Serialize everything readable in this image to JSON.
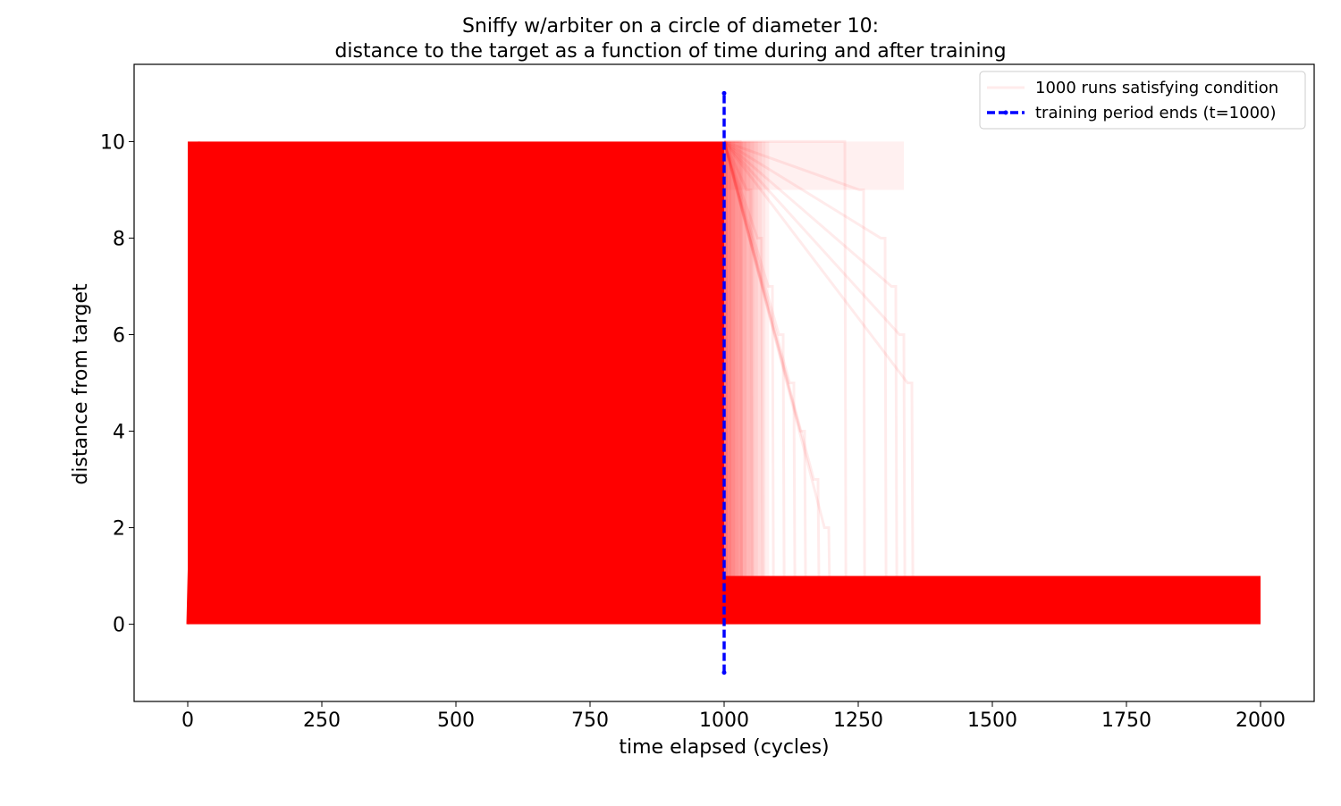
{
  "chart_data": {
    "type": "line",
    "title_lines": [
      "Sniffy w/arbiter on a circle of diameter 10:",
      "distance to the target as a function of time during and after training"
    ],
    "xlabel": "time elapsed (cycles)",
    "ylabel": "distance from target",
    "xlim": [
      -100,
      2100
    ],
    "ylim": [
      -1.6,
      11.6
    ],
    "xticks": [
      0,
      250,
      500,
      750,
      1000,
      1250,
      1500,
      1750,
      2000
    ],
    "yticks": [
      0,
      2,
      4,
      6,
      8,
      10
    ],
    "grid": false,
    "legend_position": "top-right",
    "series": [
      {
        "name": "1000 runs satisfying condition",
        "color": "#ff0000",
        "style": "solid",
        "alpha": 0.08,
        "description_of_band": {
          "training_region": {
            "x": [
              0,
              1000
            ],
            "y": [
              0,
              10
            ]
          },
          "post_training_region": {
            "x": [
              1000,
              2000
            ],
            "y": [
              0,
              1
            ]
          },
          "straggler_runs_end_x": [
            1030,
            1050,
            1070,
            1090,
            1110,
            1130,
            1150,
            1175,
            1195,
            1225,
            1260,
            1300,
            1320,
            1335,
            1350
          ],
          "straggler_levels_y": [
            10,
            9,
            8,
            7,
            6,
            5,
            4,
            3,
            2
          ]
        }
      },
      {
        "name": "training period ends (t=1000)",
        "color": "#0000ff",
        "style": "dashed",
        "x": [
          1000,
          1000
        ],
        "y": [
          -1,
          11
        ]
      }
    ]
  }
}
